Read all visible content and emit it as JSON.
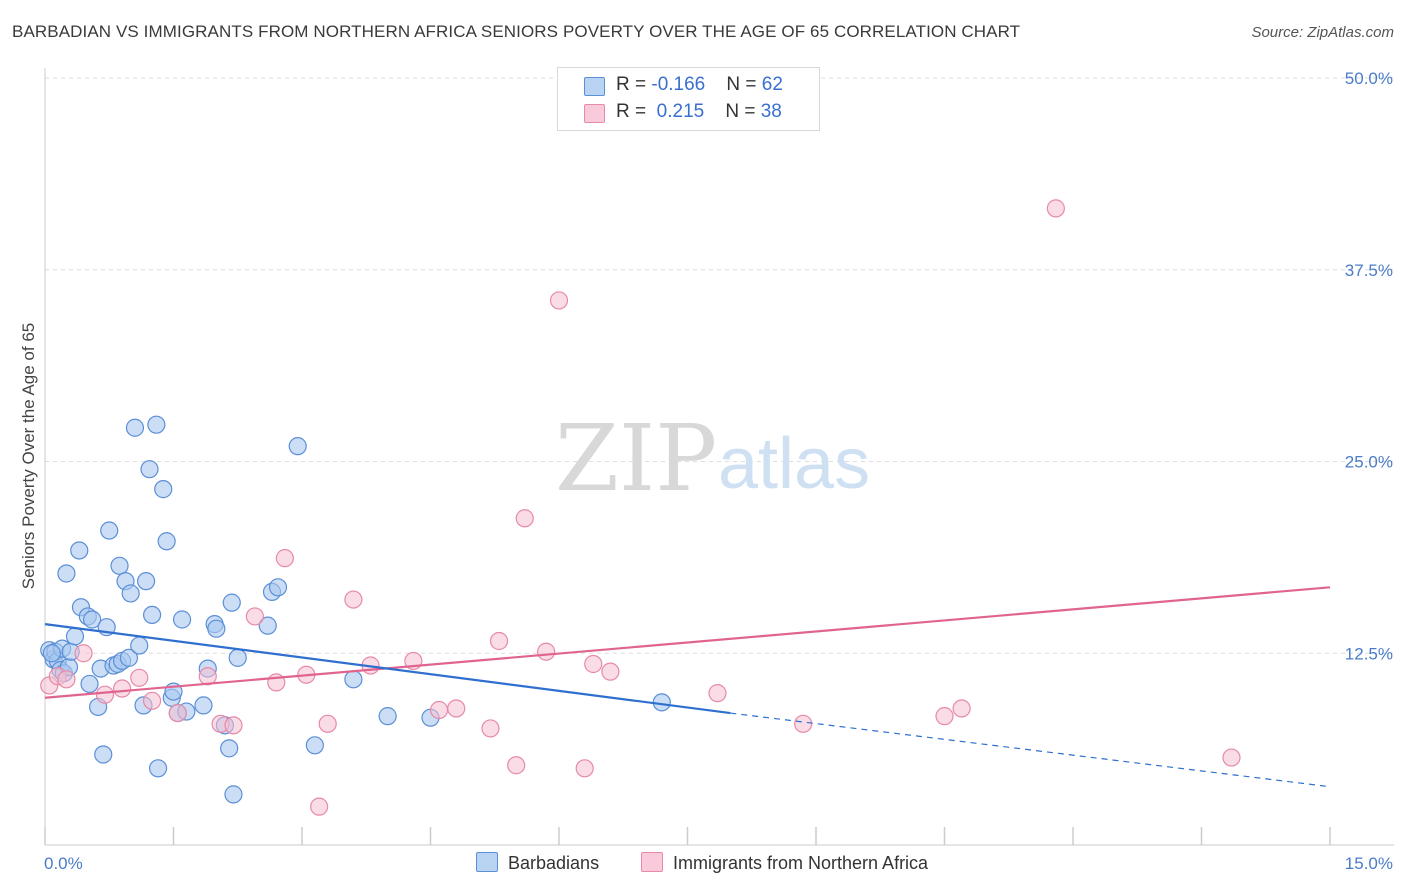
{
  "title": "BARBADIAN VS IMMIGRANTS FROM NORTHERN AFRICA SENIORS POVERTY OVER THE AGE OF 65 CORRELATION CHART",
  "source": "Source: ZipAtlas.com",
  "watermark": {
    "zip": "ZIP",
    "atlas": "atlas"
  },
  "legend": {
    "rows": [
      {
        "r_label": "R = ",
        "r_value": "-0.166",
        "n_label": "N = ",
        "n_value": "62"
      },
      {
        "r_label": "R = ",
        "r_value": " 0.215",
        "n_label": "N = ",
        "n_value": "38"
      }
    ]
  },
  "bottom_legend": {
    "series1": "Barbadians",
    "series2": "Immigrants from Northern Africa"
  },
  "colors": {
    "blue_fill": "#a9c8f0",
    "blue_stroke": "#5b8fd6",
    "blue_line": "#2f6fcf",
    "pink_fill": "#f6c0d1",
    "pink_stroke": "#e68aa8",
    "pink_line": "#e0648f",
    "grid": "#dddddd",
    "tick_text": "#4a7cc9"
  },
  "chart_data": {
    "type": "scatter",
    "title": "BARBADIAN VS IMMIGRANTS FROM NORTHERN AFRICA SENIORS POVERTY OVER THE AGE OF 65 CORRELATION CHART",
    "xlabel": "",
    "ylabel": "Seniors Poverty Over the Age of 65",
    "xlim": [
      0,
      15
    ],
    "ylim": [
      0,
      50
    ],
    "x_tick_labels": [
      "0.0%",
      "15.0%"
    ],
    "y_ticks": [
      12.5,
      25.0,
      37.5,
      50.0
    ],
    "y_tick_labels": [
      "12.5%",
      "25.0%",
      "37.5%",
      "50.0%"
    ],
    "grid": "horizontal dashed",
    "legend_position": "top-center",
    "series": [
      {
        "name": "Barbadians",
        "r": -0.166,
        "n": 62,
        "points": [
          [
            0.05,
            12.7
          ],
          [
            0.1,
            12.1
          ],
          [
            0.12,
            12.6
          ],
          [
            0.15,
            12.0
          ],
          [
            0.18,
            11.4
          ],
          [
            0.2,
            12.8
          ],
          [
            0.22,
            11.2
          ],
          [
            0.25,
            17.7
          ],
          [
            0.28,
            11.6
          ],
          [
            0.3,
            12.6
          ],
          [
            0.35,
            13.6
          ],
          [
            0.4,
            19.2
          ],
          [
            0.42,
            15.5
          ],
          [
            0.5,
            14.9
          ],
          [
            0.52,
            10.5
          ],
          [
            0.55,
            14.7
          ],
          [
            0.62,
            9.0
          ],
          [
            0.65,
            11.5
          ],
          [
            0.68,
            5.9
          ],
          [
            0.72,
            14.2
          ],
          [
            0.75,
            20.5
          ],
          [
            0.8,
            11.7
          ],
          [
            0.85,
            11.8
          ],
          [
            0.87,
            18.2
          ],
          [
            0.9,
            12.0
          ],
          [
            0.94,
            17.2
          ],
          [
            0.98,
            12.2
          ],
          [
            1.0,
            16.4
          ],
          [
            1.05,
            27.2
          ],
          [
            1.1,
            13.0
          ],
          [
            1.15,
            9.1
          ],
          [
            1.18,
            17.2
          ],
          [
            1.22,
            24.5
          ],
          [
            1.25,
            15.0
          ],
          [
            1.3,
            27.4
          ],
          [
            1.32,
            5.0
          ],
          [
            1.38,
            23.2
          ],
          [
            1.42,
            19.8
          ],
          [
            1.48,
            9.6
          ],
          [
            1.5,
            10.0
          ],
          [
            1.55,
            8.6
          ],
          [
            1.6,
            14.7
          ],
          [
            1.65,
            8.7
          ],
          [
            1.85,
            9.1
          ],
          [
            1.9,
            11.5
          ],
          [
            1.98,
            14.4
          ],
          [
            2.0,
            14.1
          ],
          [
            2.1,
            7.8
          ],
          [
            2.15,
            6.3
          ],
          [
            2.18,
            15.8
          ],
          [
            2.2,
            3.3
          ],
          [
            2.25,
            12.2
          ],
          [
            2.6,
            14.3
          ],
          [
            2.65,
            16.5
          ],
          [
            2.72,
            16.8
          ],
          [
            2.95,
            26.0
          ],
          [
            3.15,
            6.5
          ],
          [
            3.6,
            10.8
          ],
          [
            4.0,
            8.4
          ],
          [
            4.5,
            8.3
          ],
          [
            7.2,
            9.3
          ],
          [
            0.08,
            12.5
          ]
        ],
        "trend_solid": {
          "x": [
            0,
            8.0
          ],
          "y": [
            14.4,
            8.6
          ]
        },
        "trend_dashed": {
          "x": [
            8.0,
            15.0
          ],
          "y": [
            8.6,
            3.8
          ]
        }
      },
      {
        "name": "Immigrants from Northern Africa",
        "r": 0.215,
        "n": 38,
        "points": [
          [
            0.05,
            10.4
          ],
          [
            0.15,
            11.0
          ],
          [
            0.25,
            10.8
          ],
          [
            0.45,
            12.5
          ],
          [
            0.7,
            9.8
          ],
          [
            0.9,
            10.2
          ],
          [
            1.1,
            10.9
          ],
          [
            1.25,
            9.4
          ],
          [
            1.55,
            8.6
          ],
          [
            1.9,
            11.0
          ],
          [
            2.05,
            7.9
          ],
          [
            2.2,
            7.8
          ],
          [
            2.45,
            14.9
          ],
          [
            2.7,
            10.6
          ],
          [
            2.8,
            18.7
          ],
          [
            3.05,
            11.1
          ],
          [
            3.2,
            2.5
          ],
          [
            3.3,
            7.9
          ],
          [
            3.6,
            16.0
          ],
          [
            3.8,
            11.7
          ],
          [
            4.3,
            12.0
          ],
          [
            4.6,
            8.8
          ],
          [
            4.8,
            8.9
          ],
          [
            5.2,
            7.6
          ],
          [
            5.3,
            13.3
          ],
          [
            5.5,
            5.2
          ],
          [
            5.6,
            21.3
          ],
          [
            5.85,
            12.6
          ],
          [
            6.0,
            35.5
          ],
          [
            6.3,
            5.0
          ],
          [
            6.4,
            11.8
          ],
          [
            6.6,
            11.3
          ],
          [
            7.85,
            9.9
          ],
          [
            8.85,
            7.9
          ],
          [
            10.5,
            8.4
          ],
          [
            10.7,
            8.9
          ],
          [
            11.8,
            41.5
          ],
          [
            13.85,
            5.7
          ]
        ],
        "trend_solid": {
          "x": [
            0,
            15.0
          ],
          "y": [
            9.6,
            16.8
          ]
        }
      }
    ]
  }
}
